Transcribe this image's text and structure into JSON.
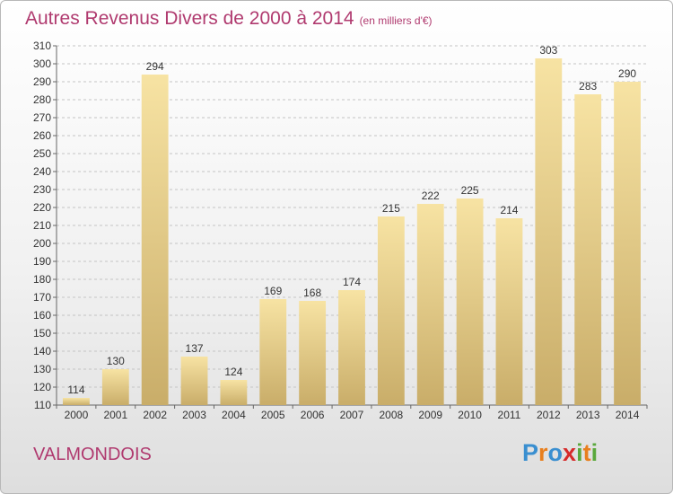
{
  "title": "Autres Revenus Divers de 2000 à 2014",
  "unit": "(en milliers d'€)",
  "commune": "VALMONDOIS",
  "logo": {
    "text": "Proxiti",
    "colors": [
      "#3a8fd0",
      "#e87f1e",
      "#3a8fd0",
      "#d62b2b",
      "#5aa83c",
      "#e87f1e",
      "#5aa83c"
    ]
  },
  "colors": {
    "title": "#b03a6f",
    "bar_light": "#f7e3a3",
    "bar_dark": "#c9ad69"
  },
  "chart_data": {
    "type": "bar",
    "categories": [
      "2000",
      "2001",
      "2002",
      "2003",
      "2004",
      "2005",
      "2006",
      "2007",
      "2008",
      "2009",
      "2010",
      "2011",
      "2012",
      "2013",
      "2014"
    ],
    "values": [
      114,
      130,
      294,
      137,
      124,
      169,
      168,
      174,
      215,
      222,
      225,
      214,
      303,
      283,
      290
    ],
    "ylim": [
      110,
      310
    ],
    "yticks": [
      110,
      120,
      130,
      140,
      150,
      160,
      170,
      180,
      190,
      200,
      210,
      220,
      230,
      240,
      250,
      260,
      270,
      280,
      290,
      300,
      310
    ],
    "grid": true,
    "data_labels": true
  }
}
